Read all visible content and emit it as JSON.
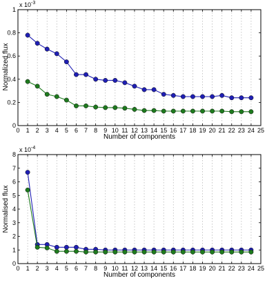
{
  "chart_data": [
    {
      "type": "line",
      "xlabel": "Number of components",
      "ylabel": "Normalized flux",
      "y_multiplier": "x 10",
      "y_exponent": "-3",
      "xlim": [
        0,
        25
      ],
      "ylim": [
        0,
        1
      ],
      "x_ticks": [
        0,
        1,
        2,
        3,
        4,
        5,
        6,
        7,
        8,
        9,
        10,
        11,
        12,
        13,
        14,
        15,
        16,
        17,
        18,
        19,
        20,
        21,
        22,
        23,
        24,
        25
      ],
      "y_ticks": [
        0,
        0.2,
        0.4,
        0.6,
        0.8,
        1
      ],
      "y_tick_labels": [
        "0",
        "0.2",
        "0.4",
        "0.6",
        "0.8",
        "1"
      ],
      "grid": "x-dotted",
      "x": [
        1,
        2,
        3,
        4,
        5,
        6,
        7,
        8,
        9,
        10,
        11,
        12,
        13,
        14,
        15,
        16,
        17,
        18,
        19,
        20,
        21,
        22,
        23,
        24
      ],
      "series": [
        {
          "color": "#1f1fb4",
          "values": [
            0.78,
            0.71,
            0.66,
            0.62,
            0.55,
            0.44,
            0.44,
            0.4,
            0.39,
            0.39,
            0.37,
            0.34,
            0.31,
            0.31,
            0.27,
            0.26,
            0.25,
            0.25,
            0.25,
            0.25,
            0.26,
            0.24,
            0.24,
            0.24
          ]
        },
        {
          "color": "#1e7a1e",
          "values": [
            0.38,
            0.34,
            0.27,
            0.25,
            0.22,
            0.17,
            0.17,
            0.16,
            0.155,
            0.155,
            0.15,
            0.14,
            0.13,
            0.13,
            0.125,
            0.125,
            0.125,
            0.125,
            0.125,
            0.125,
            0.125,
            0.12,
            0.12,
            0.12
          ]
        }
      ]
    },
    {
      "type": "line",
      "xlabel": "Number of components",
      "ylabel": "Normalised flux",
      "y_multiplier": "x 10",
      "y_exponent": "-4",
      "xlim": [
        0,
        25
      ],
      "ylim": [
        0,
        8
      ],
      "x_ticks": [
        0,
        1,
        2,
        3,
        4,
        5,
        6,
        7,
        8,
        9,
        10,
        11,
        12,
        13,
        14,
        15,
        16,
        17,
        18,
        19,
        20,
        21,
        22,
        23,
        24,
        25
      ],
      "y_ticks": [
        0,
        1,
        2,
        3,
        4,
        5,
        6,
        7,
        8
      ],
      "y_tick_labels": [
        "0",
        "1",
        "2",
        "3",
        "4",
        "5",
        "6",
        "7",
        "8"
      ],
      "grid": "x-dotted",
      "x": [
        1,
        2,
        3,
        4,
        5,
        6,
        7,
        8,
        9,
        10,
        11,
        12,
        13,
        14,
        15,
        16,
        17,
        18,
        19,
        20,
        21,
        22,
        23,
        24
      ],
      "series": [
        {
          "color": "#1f1fb4",
          "values": [
            6.7,
            1.4,
            1.4,
            1.2,
            1.2,
            1.2,
            1.05,
            1.05,
            1.0,
            1.0,
            1.0,
            1.0,
            1.0,
            1.0,
            1.0,
            1.0,
            1.0,
            1.0,
            1.0,
            1.0,
            1.0,
            1.0,
            1.0,
            1.0
          ]
        },
        {
          "color": "#1e7a1e",
          "values": [
            5.4,
            1.2,
            1.15,
            0.9,
            0.9,
            0.9,
            0.85,
            0.85,
            0.85,
            0.85,
            0.85,
            0.85,
            0.85,
            0.85,
            0.85,
            0.85,
            0.85,
            0.85,
            0.85,
            0.85,
            0.85,
            0.85,
            0.85,
            0.85
          ]
        }
      ]
    }
  ]
}
